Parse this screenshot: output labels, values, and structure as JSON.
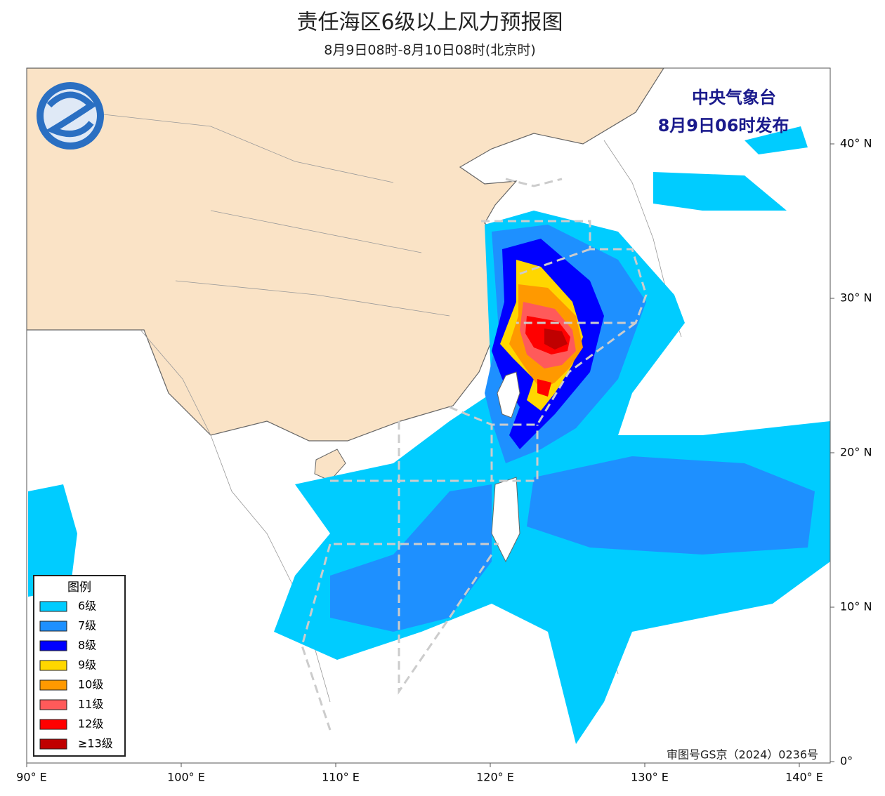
{
  "header": {
    "title": "责任海区6级以上风力预报图",
    "subtitle": "8月9日08时-8月10日08时(北京时)"
  },
  "issuer": {
    "agency": "中央气象台",
    "time": "8月9日06时发布"
  },
  "legend": {
    "title": "图例",
    "items": [
      {
        "label": "6级",
        "color": "#00ccff"
      },
      {
        "label": "7级",
        "color": "#1e90ff"
      },
      {
        "label": "8级",
        "color": "#0000ff"
      },
      {
        "label": "9级",
        "color": "#ffd700"
      },
      {
        "label": "10级",
        "color": "#ff9900"
      },
      {
        "label": "11级",
        "color": "#ff5a5a"
      },
      {
        "label": "12级",
        "color": "#ff0000"
      },
      {
        "label": "≥13级",
        "color": "#c00000"
      }
    ]
  },
  "axes": {
    "lon_labels": [
      "90° E",
      "100° E",
      "110° E",
      "120° E",
      "130° E",
      "140° E"
    ],
    "lat_labels": [
      "40° N",
      "30° N",
      "20° N",
      "10° N",
      "0°"
    ]
  },
  "footer": {
    "approval": "审图号GS京（2024）0236号"
  }
}
